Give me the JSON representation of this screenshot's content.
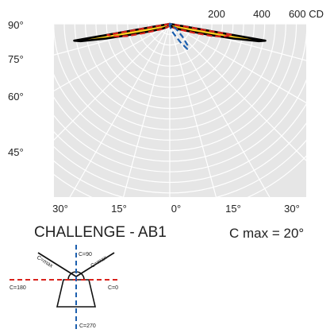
{
  "chart_data": {
    "type": "polar",
    "title": "CHALLENGE - AB1",
    "subtitle": "C max = 20°",
    "intensity_ticks": [
      "200",
      "400",
      "600 CD"
    ],
    "intensity_values": [
      200,
      400,
      600
    ],
    "angle_labels_left": [
      "90°",
      "75°",
      "60°",
      "45°"
    ],
    "angle_labels_bottom": [
      "30°",
      "15°",
      "0°",
      "15°",
      "30°"
    ],
    "series": [
      {
        "line_style": "solid",
        "color": "#000000",
        "fill": "#ffd21f",
        "points": [
          {
            "angle": -80,
            "cd": 920
          },
          {
            "angle": -79,
            "cd": 860
          },
          {
            "angle": -77,
            "cd": 620
          },
          {
            "angle": -75,
            "cd": 420
          },
          {
            "angle": -70,
            "cd": 210
          },
          {
            "angle": -60,
            "cd": 100
          },
          {
            "angle": -40,
            "cd": 40
          },
          {
            "angle": -20,
            "cd": 20
          },
          {
            "angle": 0,
            "cd": 15
          },
          {
            "angle": 20,
            "cd": 20
          },
          {
            "angle": 40,
            "cd": 40
          },
          {
            "angle": 60,
            "cd": 100
          },
          {
            "angle": 70,
            "cd": 210
          },
          {
            "angle": 75,
            "cd": 420
          },
          {
            "angle": 77,
            "cd": 620
          },
          {
            "angle": 79,
            "cd": 860
          },
          {
            "angle": 80,
            "cd": 920
          }
        ]
      },
      {
        "line_style": "dashed",
        "color": "#d9221c",
        "points": [
          {
            "angle": -80,
            "cd": 600
          },
          {
            "angle": -77,
            "cd": 530
          },
          {
            "angle": -74,
            "cd": 420
          },
          {
            "angle": -70,
            "cd": 250
          },
          {
            "angle": -60,
            "cd": 110
          },
          {
            "angle": -40,
            "cd": 45
          },
          {
            "angle": 0,
            "cd": 15
          },
          {
            "angle": 40,
            "cd": 45
          },
          {
            "angle": 60,
            "cd": 110
          },
          {
            "angle": 70,
            "cd": 250
          },
          {
            "angle": 74,
            "cd": 420
          },
          {
            "angle": 77,
            "cd": 530
          },
          {
            "angle": 80,
            "cd": 600
          }
        ]
      },
      {
        "line_style": "dashed",
        "color": "#1c5fae",
        "points": [
          {
            "angle": -10,
            "cd": 15
          },
          {
            "angle": 0,
            "cd": 15
          },
          {
            "angle": 10,
            "cd": 35
          },
          {
            "angle": 20,
            "cd": 90
          },
          {
            "angle": 30,
            "cd": 200
          },
          {
            "angle": 35,
            "cd": 290
          },
          {
            "angle": 40,
            "cd": 260
          },
          {
            "angle": 45,
            "cd": 170
          },
          {
            "angle": 50,
            "cd": 90
          },
          {
            "angle": 60,
            "cd": 40
          },
          {
            "angle": 70,
            "cd": 20
          },
          {
            "angle": 80,
            "cd": 15
          }
        ]
      }
    ]
  },
  "inset": {
    "labels": {
      "c_max_left": "C=max",
      "c_max_right": "C=max",
      "c90": "C=90",
      "c180": "C=180",
      "c0": "C=0",
      "c270": "C=270"
    }
  }
}
